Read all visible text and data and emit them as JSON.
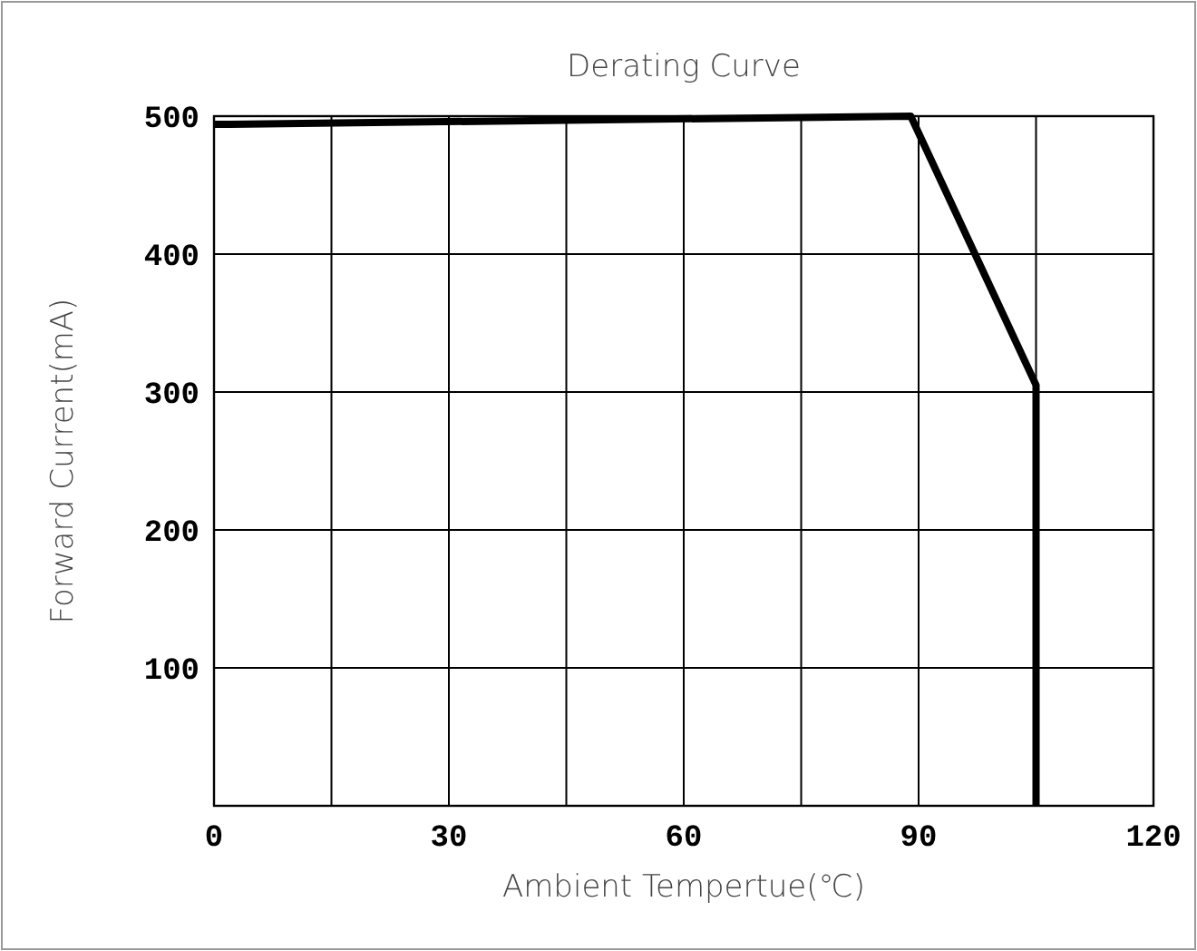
{
  "chart_data": {
    "type": "line",
    "title": "Derating Curve",
    "xlabel": "Ambient Tempertue(℃)",
    "ylabel": "Forward Current(mA)",
    "x": [
      0,
      89,
      105,
      105
    ],
    "series": [
      {
        "color": "#000000",
        "values": [
          494,
          500,
          305,
          0
        ]
      }
    ],
    "xlim": [
      0,
      120
    ],
    "xticks": [
      0,
      {
        "value": 15,
        "label": null
      },
      30,
      {
        "value": 45,
        "label": null
      },
      60,
      {
        "value": 75,
        "label": null
      },
      90,
      {
        "value": 105,
        "label": null
      },
      120
    ],
    "ylim": [
      0,
      500
    ],
    "yticks": [
      100,
      200,
      300,
      400,
      500
    ],
    "grid": true,
    "marker": "none",
    "line_style": "solid"
  }
}
